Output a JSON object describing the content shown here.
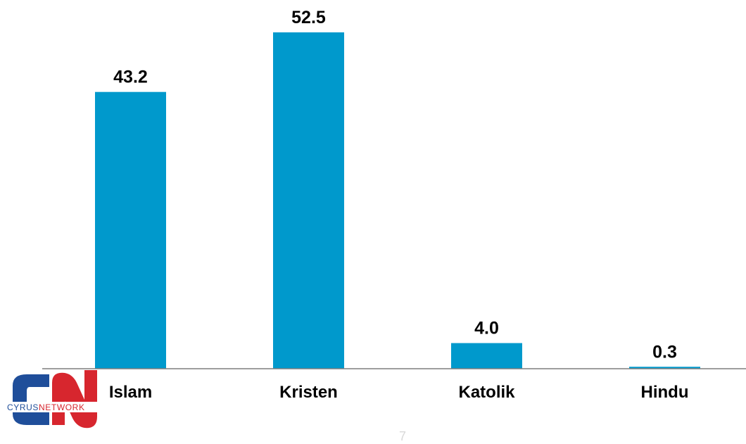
{
  "chart_data": {
    "type": "bar",
    "categories": [
      "Islam",
      "Kristen",
      "Katolik",
      "Hindu"
    ],
    "values": [
      43.2,
      52.5,
      4.0,
      0.3
    ],
    "value_labels": [
      "43.2",
      "52.5",
      "4.0",
      "0.3"
    ],
    "ylim": [
      0,
      55
    ],
    "grid": false,
    "legend": "none",
    "bar_color": "#0099CC",
    "axis_color": "#7F7F7F"
  },
  "logo": {
    "text_a": "CYRUS",
    "text_b": "NETWORK",
    "color_blue": "#1F4E9A",
    "color_red": "#D7262E"
  },
  "footer": {
    "page_number": "7"
  }
}
